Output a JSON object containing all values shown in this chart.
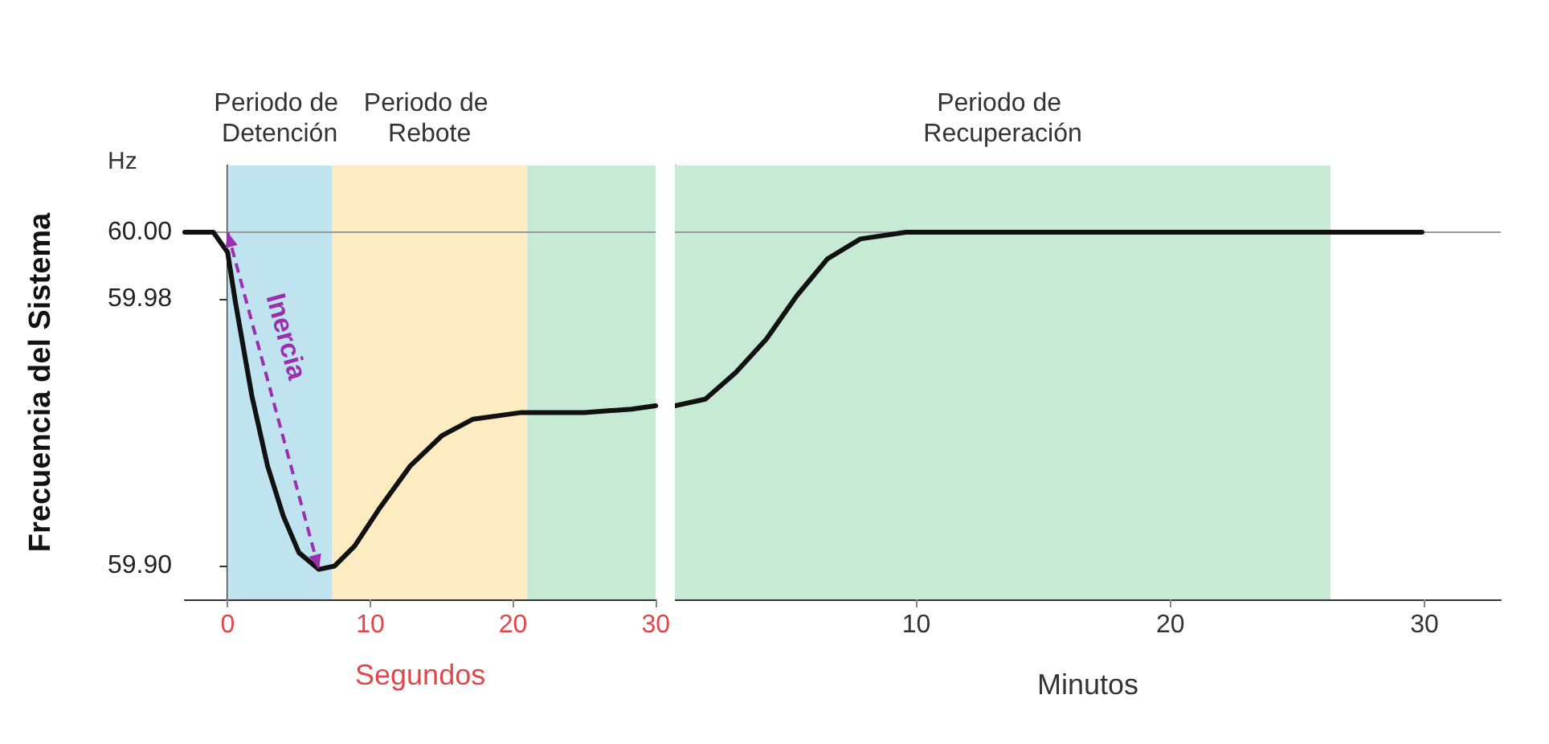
{
  "chart_data": [
    {
      "type": "line",
      "ylabel": "Frecuencia del Sistema",
      "xlabel": "Segundos",
      "annotations": [
        "Hz",
        "Inercia"
      ],
      "x": [
        -3,
        -1,
        0,
        0.55,
        1.7,
        2.8,
        3.9,
        5,
        6.4,
        7.5,
        8.9,
        10.6,
        12.8,
        15,
        17.2,
        20.6,
        25,
        28.3,
        30
      ],
      "series": [
        {
          "color": "#111111",
          "values": [
            60.0,
            60.0,
            59.994,
            59.979,
            59.951,
            59.93,
            59.915,
            59.904,
            59.899,
            59.9,
            59.906,
            59.917,
            59.93,
            59.939,
            59.944,
            59.946,
            59.946,
            59.947,
            59.948
          ]
        }
      ],
      "xlim": [
        -3,
        30
      ],
      "xticks": [
        0,
        10,
        20,
        30
      ],
      "ylim": [
        59.89,
        60.02
      ],
      "yticks": [
        {
          "value": 59.9,
          "label": "59.90"
        },
        59.98,
        {
          "value": 60,
          "label": "60.00"
        }
      ],
      "bands": [
        {
          "axis": "x",
          "from": 0,
          "to": 7.3,
          "label": "Periodo de Detención",
          "color": "#bfe4f0"
        },
        {
          "axis": "x",
          "from": 7.3,
          "to": 21,
          "label": "Periodo de Rebote",
          "color": "#fdecc2"
        },
        {
          "axis": "x",
          "from": 21,
          "to": 30,
          "color": "#c6ead4"
        }
      ],
      "ref_lines": [
        {
          "axis": "y",
          "value": 60,
          "color": "#999999"
        }
      ],
      "marker": "none",
      "grid": false
    },
    {
      "type": "line",
      "xlabel": "Minutos",
      "x": [
        0.5,
        1.7,
        2.9,
        4.1,
        5.3,
        6.5,
        7.8,
        9.6,
        29.9
      ],
      "series": [
        {
          "color": "#111111",
          "values": [
            59.948,
            59.95,
            59.958,
            59.968,
            59.981,
            59.992,
            59.998,
            60.0,
            60.0
          ]
        }
      ],
      "xlim": [
        0.5,
        33
      ],
      "xticks": [
        10,
        20,
        30
      ],
      "ylim": [
        59.89,
        60.02
      ],
      "tick_labels": "x",
      "bands": [
        {
          "axis": "x",
          "from": 0.5,
          "to": 26.3,
          "label": "Periodo de Recuperación",
          "color": "#c6ead4"
        }
      ],
      "ref_lines": [
        {
          "axis": "y",
          "value": 60,
          "color": "#999999"
        }
      ],
      "marker": "none",
      "grid": false
    }
  ]
}
